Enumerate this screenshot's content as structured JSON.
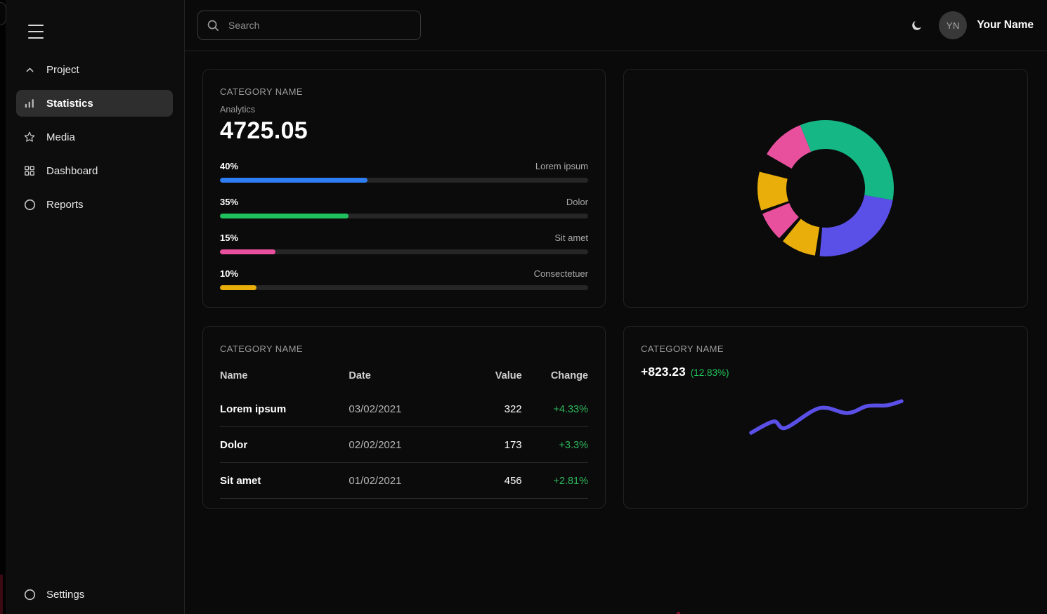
{
  "sidebar": {
    "project_label": "Project",
    "items": [
      {
        "label": "Statistics",
        "icon": "bar-chart-icon",
        "active": true
      },
      {
        "label": "Media",
        "icon": "star-icon",
        "active": false
      },
      {
        "label": "Dashboard",
        "icon": "grid-icon",
        "active": false
      },
      {
        "label": "Reports",
        "icon": "circle-icon",
        "active": false
      }
    ],
    "settings_label": "Settings"
  },
  "topbar": {
    "search_placeholder": "Search",
    "user_initials": "YN",
    "user_name": "Your Name"
  },
  "cards": {
    "analytics": {
      "category": "CATEGORY NAME",
      "subtitle": "Analytics",
      "value": "4725.05",
      "bars": [
        {
          "percent": "40%",
          "value": 40,
          "label": "Lorem ipsum",
          "color": "#2e7df2"
        },
        {
          "percent": "35%",
          "value": 35,
          "label": "Dolor",
          "color": "#1fc05e"
        },
        {
          "percent": "15%",
          "value": 15,
          "label": "Sit amet",
          "color": "#e8509e"
        },
        {
          "percent": "10%",
          "value": 10,
          "label": "Consectetuer",
          "color": "#e9ae09"
        }
      ]
    },
    "table": {
      "category": "CATEGORY NAME",
      "headers": [
        "Name",
        "Date",
        "Value",
        "Change"
      ],
      "rows": [
        {
          "name": "Lorem ipsum",
          "date": "03/02/2021",
          "value": "322",
          "change": "+4.33%"
        },
        {
          "name": "Dolor",
          "date": "02/02/2021",
          "value": "173",
          "change": "+3.3%"
        },
        {
          "name": "Sit amet",
          "date": "01/02/2021",
          "value": "456",
          "change": "+2.81%"
        }
      ]
    },
    "trend": {
      "category": "CATEGORY NAME",
      "value": "+823.23",
      "percent": "(12.83%)"
    }
  },
  "chart_data": [
    {
      "type": "bar",
      "title": "Analytics",
      "total_value": 4725.05,
      "categories": [
        "Lorem ipsum",
        "Dolor",
        "Sit amet",
        "Consectetuer"
      ],
      "values": [
        40,
        35,
        15,
        10
      ],
      "unit": "%",
      "colors": [
        "#2e7df2",
        "#1fc05e",
        "#e8509e",
        "#e9ae09"
      ],
      "track_color": "#262626"
    },
    {
      "type": "pie",
      "style": "donut",
      "inner_radius": 56,
      "outer_radius": 97,
      "angles_clockwise_from_top": true,
      "segments": [
        {
          "color": "#15b885",
          "start": 338,
          "end": 460
        },
        {
          "color": "#5a50e8",
          "start": 100,
          "end": 185
        },
        {
          "color": "#e9ae09",
          "start": 189,
          "end": 219
        },
        {
          "color": "#e8509e",
          "start": 223,
          "end": 248
        },
        {
          "color": "#e9ae09",
          "start": 251,
          "end": 284
        },
        {
          "color": "#e8509e",
          "start": 300,
          "end": 338
        }
      ]
    },
    {
      "type": "line",
      "label": "+823.23 (12.83%)",
      "color": "#5a50e8",
      "stroke_width": 5.5,
      "points": [
        [
          21,
          66
        ],
        [
          53,
          50
        ],
        [
          70,
          59
        ],
        [
          118,
          31
        ],
        [
          158,
          38
        ],
        [
          186,
          28
        ],
        [
          214,
          27
        ],
        [
          235,
          21
        ]
      ]
    }
  ],
  "colors": {
    "background": "#0a0a0a",
    "card_background": "#0b0b0b",
    "card_border": "#232323",
    "active_nav": "#2e2e2e",
    "positive_green": "#2eb85c",
    "muted_text": "#9a9a9a"
  }
}
